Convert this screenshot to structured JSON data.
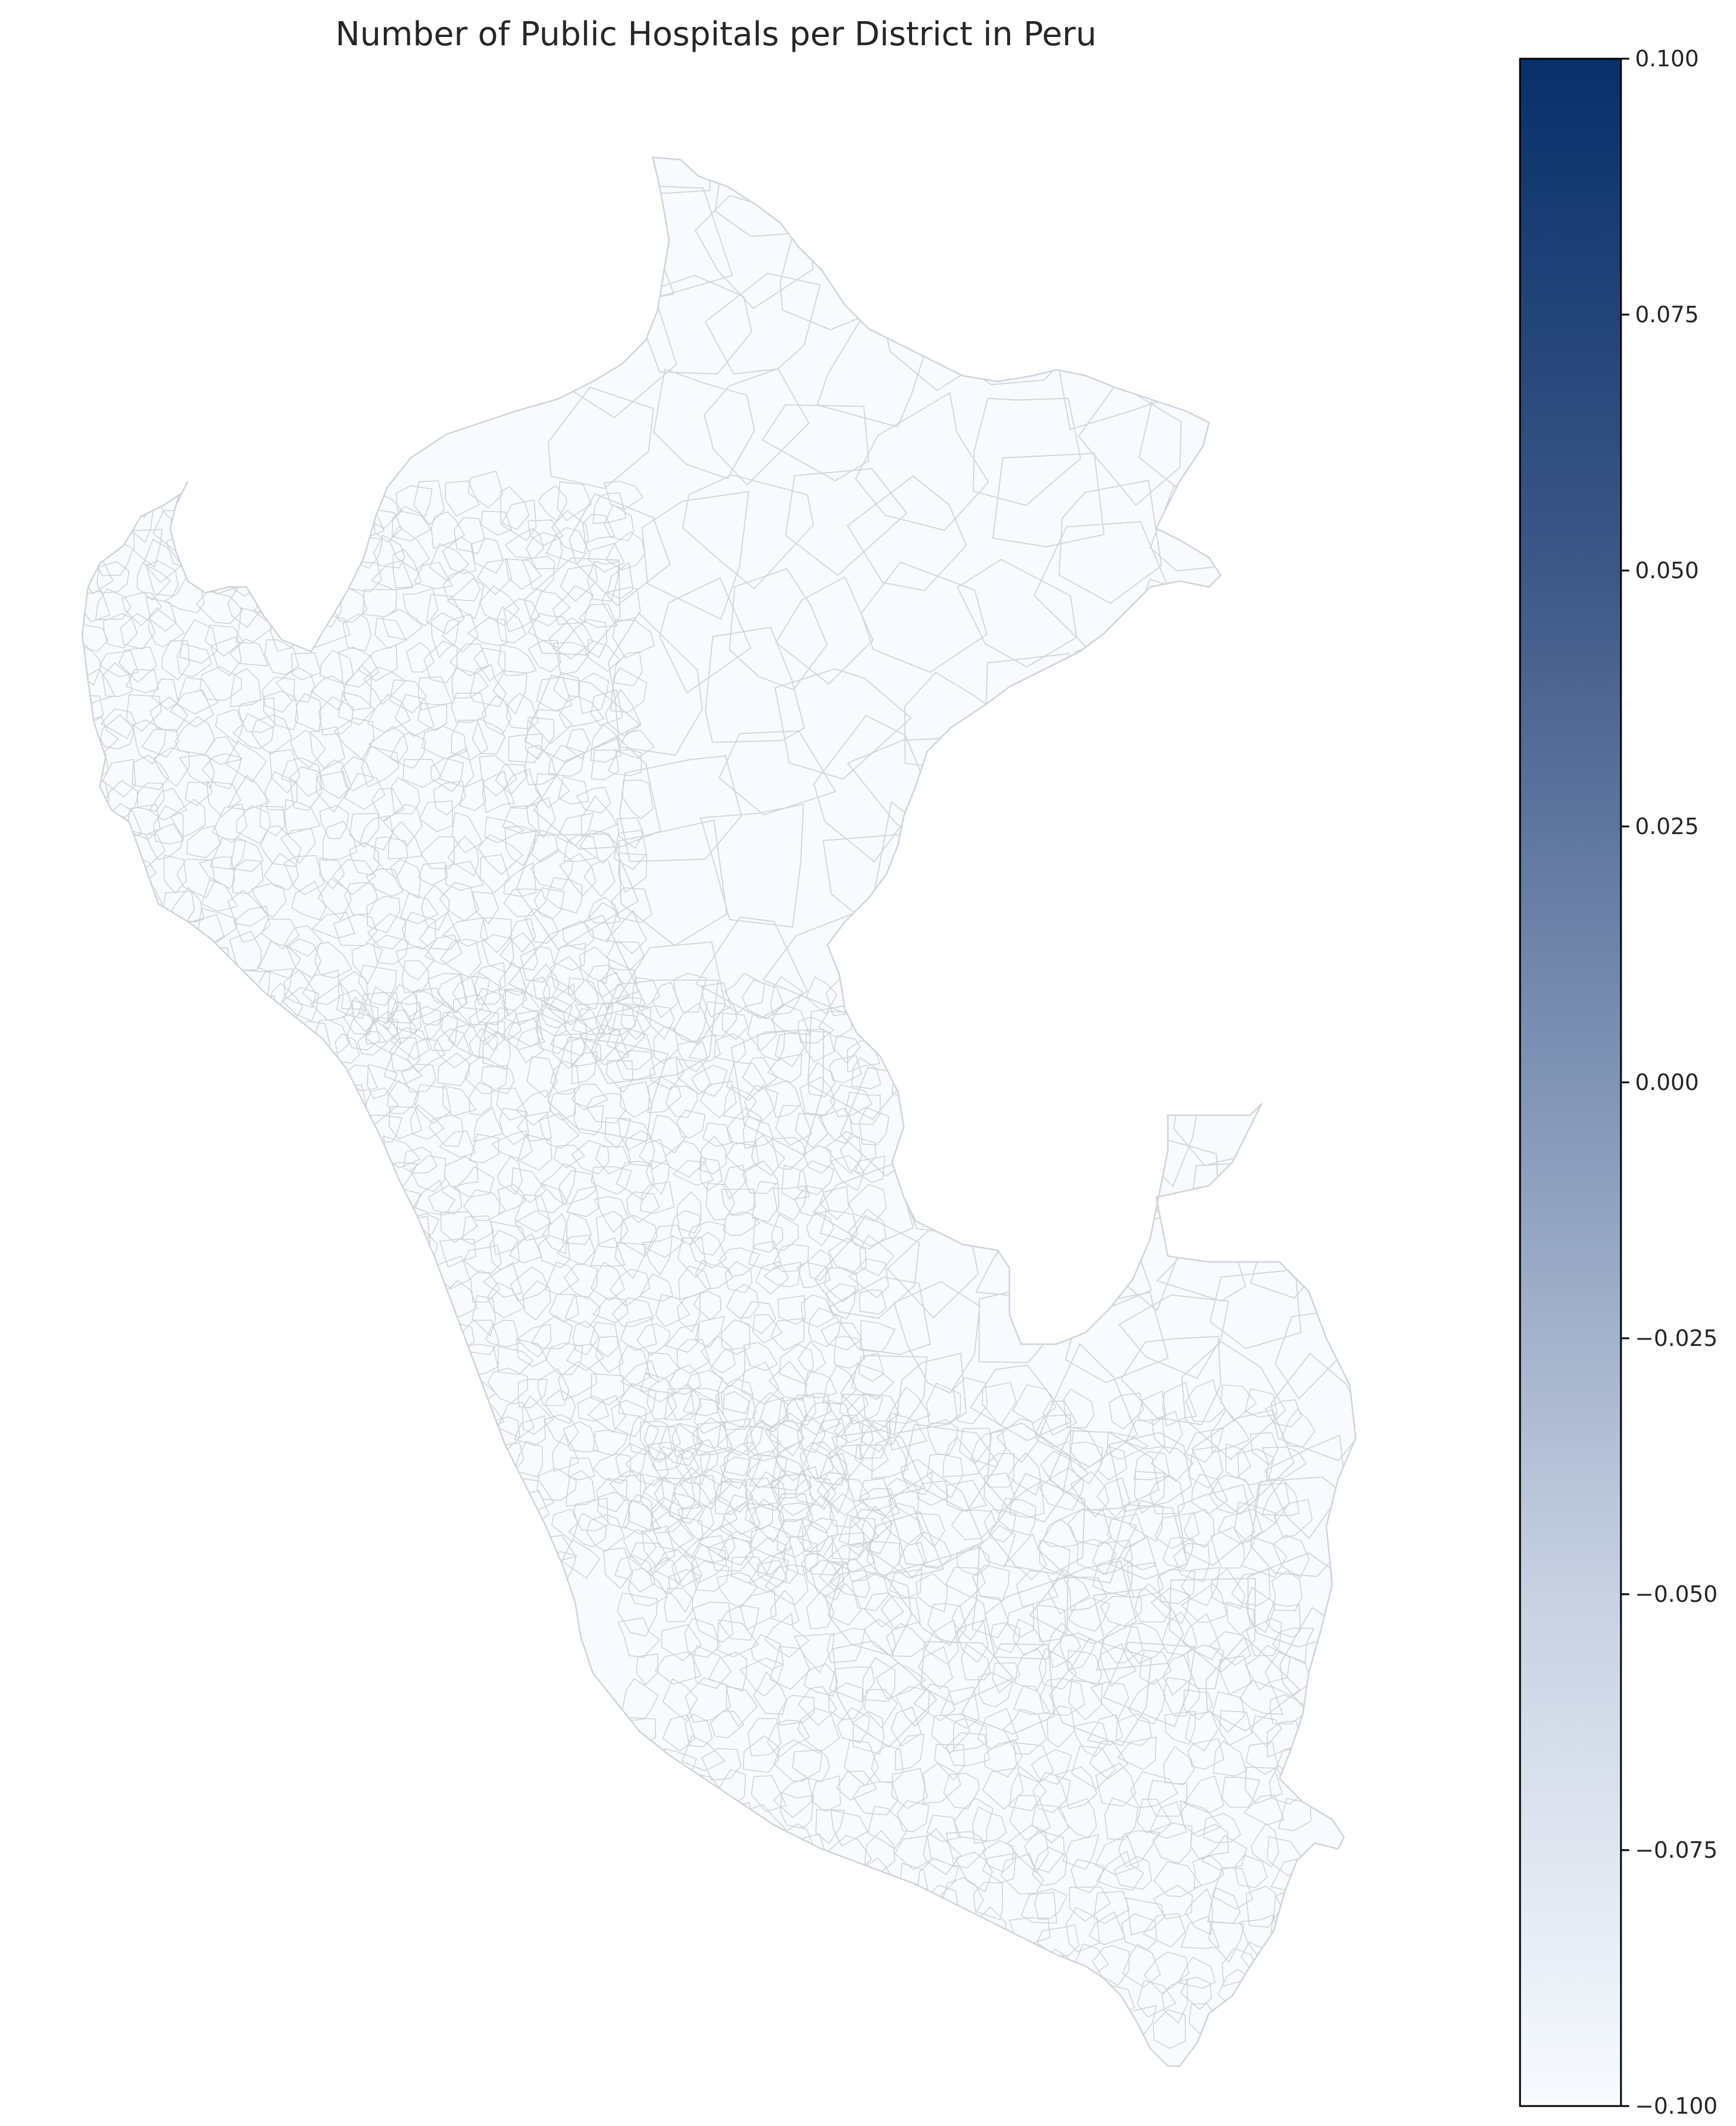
{
  "chart_data": {
    "type": "choropleth",
    "title": "Number of Public Hospitals per District in Peru",
    "region": "Peru",
    "colormap": "Blues",
    "fill_value_all_districts": 0,
    "colorbar": {
      "orientation": "vertical",
      "placement": "right",
      "range": [
        -0.1,
        0.1
      ],
      "ticks": [
        0.1,
        0.075,
        0.05,
        0.025,
        0.0,
        -0.025,
        -0.05,
        -0.075,
        -0.1
      ],
      "tick_labels": [
        "0.100",
        "0.075",
        "0.050",
        "0.025",
        "0.000",
        "−0.025",
        "−0.050",
        "−0.075",
        "−0.100"
      ],
      "color_low": "#f7fbff",
      "color_mid": "#8094b6",
      "color_high": "#08306b"
    },
    "district_fill_color": "#f7fbff",
    "district_border_color": "#d6d6d9"
  }
}
